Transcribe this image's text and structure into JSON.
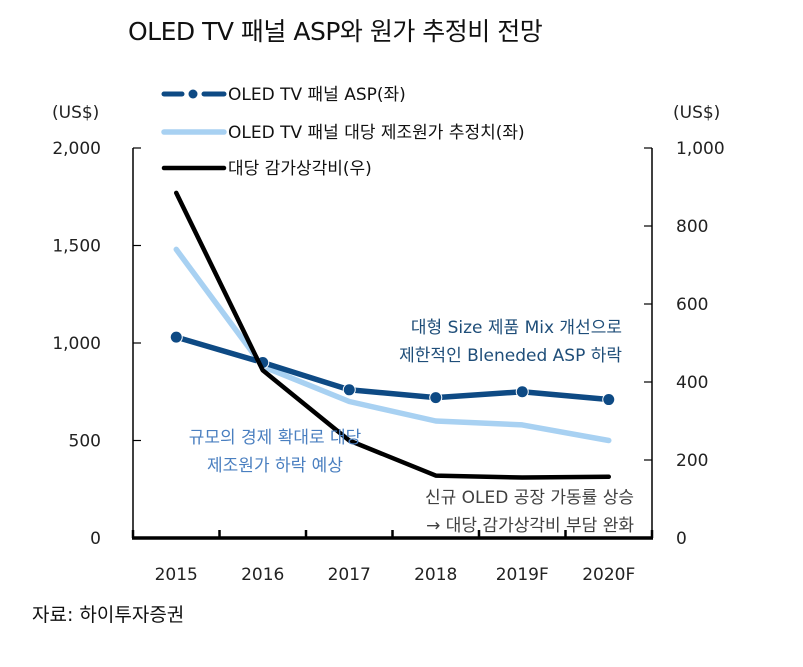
{
  "title": "OLED TV 패널 ASP와 원가 추정비 전망",
  "source": "자료:  하이투자증권",
  "colors": {
    "asp": "#0e4a84",
    "cost": "#a8d1f2",
    "depreciation": "#000000",
    "annotation_asp": "#1f4e79",
    "annotation_cost": "#4a7fc0",
    "annotation_dep": "#404040"
  },
  "chart_data": {
    "type": "line",
    "title": "OLED TV 패널 ASP와 원가 추정비 전망",
    "categories": [
      "2015",
      "2016",
      "2017",
      "2018",
      "2019F",
      "2020F"
    ],
    "left_axis": {
      "unit": "(US$)",
      "ylim": [
        0,
        2000
      ],
      "ticks": [
        0,
        500,
        1000,
        1500,
        2000
      ],
      "tick_labels": [
        "0",
        "500",
        "1,000",
        "1,500",
        "2,000"
      ]
    },
    "right_axis": {
      "unit": "(US$)",
      "ylim": [
        0,
        1000
      ],
      "ticks": [
        0,
        200,
        400,
        600,
        800,
        1000
      ],
      "tick_labels": [
        "0",
        "200",
        "400",
        "600",
        "800",
        "1,000"
      ]
    },
    "series": [
      {
        "name": "OLED TV 패널 ASP(좌)",
        "axis": "left",
        "style": "line-marker",
        "values": [
          1030,
          900,
          760,
          720,
          750,
          710
        ]
      },
      {
        "name": "OLED TV 패널 대당 제조원가 추정치(좌)",
        "axis": "left",
        "style": "line",
        "values": [
          1480,
          880,
          700,
          600,
          580,
          500
        ]
      },
      {
        "name": "대당 감가상각비(우)",
        "axis": "right",
        "style": "line",
        "values": [
          885,
          430,
          250,
          160,
          155,
          157
        ]
      }
    ],
    "legend_position": "top-left",
    "grid": false,
    "annotations": [
      {
        "id": "asp",
        "lines": [
          "대형 Size 제품 Mix 개선으로",
          "제한적인 Bleneded ASP 하락"
        ]
      },
      {
        "id": "cost",
        "lines": [
          "규모의 경제 확대로 대당",
          "제조원가 하락 예상"
        ]
      },
      {
        "id": "dep",
        "lines": [
          "신규 OLED 공장 가동률 상승",
          "→ 대당 감가상각비 부담 완화"
        ]
      }
    ]
  }
}
